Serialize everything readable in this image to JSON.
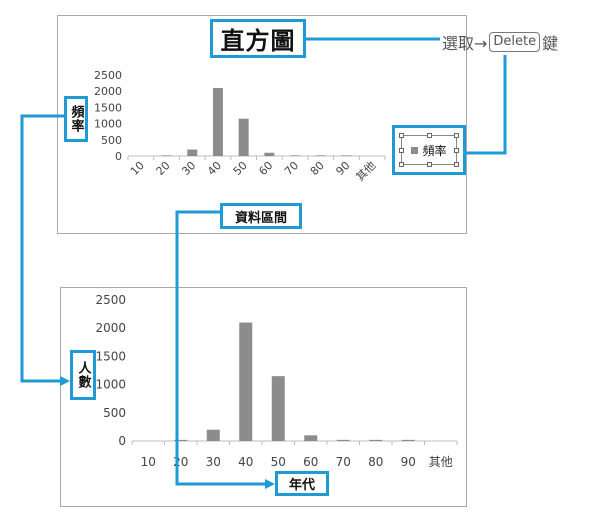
{
  "colors": {
    "accent": "#1e9ad6",
    "bar": "#8c8c8c",
    "frame": "#a9a9a9"
  },
  "annotations": {
    "instruction_prefix": "選取→",
    "delete_key": "Delete",
    "instruction_suffix": "鍵"
  },
  "chart_data": [
    {
      "type": "bar",
      "title": "直方圖",
      "xlabel": "資料區間",
      "ylabel": "頻率",
      "legend": {
        "entries": [
          "頻率"
        ],
        "position": "right"
      },
      "categories": [
        "10",
        "20",
        "30",
        "40",
        "50",
        "60",
        "70",
        "80",
        "90",
        "其他"
      ],
      "series": [
        {
          "name": "頻率",
          "values": [
            0,
            20,
            200,
            2100,
            1150,
            100,
            20,
            20,
            20,
            0
          ]
        }
      ],
      "yticks": [
        "0",
        "500",
        "1000",
        "1500",
        "2000",
        "2500"
      ],
      "ylim": [
        0,
        2500
      ],
      "xtick_rotation": -45,
      "grid": false
    },
    {
      "type": "bar",
      "title": "",
      "xlabel": "年代",
      "ylabel": "人數",
      "categories": [
        "10",
        "20",
        "30",
        "40",
        "50",
        "60",
        "70",
        "80",
        "90",
        "其他"
      ],
      "series": [
        {
          "values": [
            0,
            20,
            200,
            2100,
            1150,
            100,
            20,
            20,
            20,
            0
          ]
        }
      ],
      "yticks": [
        "0",
        "500",
        "1000",
        "1500",
        "2000",
        "2500"
      ],
      "ylim": [
        0,
        2500
      ],
      "grid": false
    }
  ]
}
